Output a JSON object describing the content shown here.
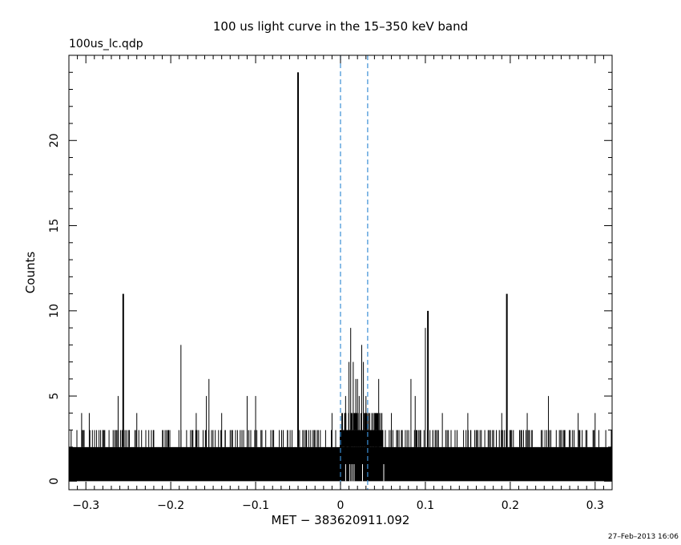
{
  "chart_data": {
    "type": "bar",
    "title": "100 us light curve in the 15–350 keV band",
    "subtitle": "100us_lc.qdp",
    "xlabel": "MET − 383620911.092",
    "ylabel": "Counts",
    "footer": "27–Feb–2013 16:06",
    "xlim": [
      -0.32,
      0.32
    ],
    "ylim": [
      -0.5,
      25
    ],
    "x_ticks": [
      -0.3,
      -0.2,
      -0.1,
      0,
      0.1,
      0.2,
      0.3
    ],
    "x_tick_labels": [
      "−0.3",
      "−0.2",
      "−0.1",
      "0",
      "0.1",
      "0.2",
      "0.3"
    ],
    "y_ticks": [
      0,
      5,
      10,
      15,
      20
    ],
    "y_tick_labels": [
      "0",
      "5",
      "10",
      "15",
      "20"
    ],
    "bin_width": 0.0001,
    "baseline_counts_band": [
      0,
      2
    ],
    "spikes": [
      {
        "x": -0.305,
        "y": 4
      },
      {
        "x": -0.296,
        "y": 4
      },
      {
        "x": -0.28,
        "y": 3
      },
      {
        "x": -0.262,
        "y": 5
      },
      {
        "x": -0.256,
        "y": 11
      },
      {
        "x": -0.24,
        "y": 4
      },
      {
        "x": -0.22,
        "y": 3
      },
      {
        "x": -0.188,
        "y": 8
      },
      {
        "x": -0.17,
        "y": 4
      },
      {
        "x": -0.158,
        "y": 5
      },
      {
        "x": -0.155,
        "y": 6
      },
      {
        "x": -0.14,
        "y": 4
      },
      {
        "x": -0.11,
        "y": 5
      },
      {
        "x": -0.1,
        "y": 5
      },
      {
        "x": -0.08,
        "y": 3
      },
      {
        "x": -0.05,
        "y": 24
      },
      {
        "x": -0.03,
        "y": 3
      },
      {
        "x": -0.01,
        "y": 4
      },
      {
        "x": 0.006,
        "y": 5
      },
      {
        "x": 0.01,
        "y": 7
      },
      {
        "x": 0.012,
        "y": 9
      },
      {
        "x": 0.015,
        "y": 7
      },
      {
        "x": 0.018,
        "y": 6
      },
      {
        "x": 0.02,
        "y": 6
      },
      {
        "x": 0.022,
        "y": 5
      },
      {
        "x": 0.025,
        "y": 8
      },
      {
        "x": 0.027,
        "y": 7
      },
      {
        "x": 0.03,
        "y": 5
      },
      {
        "x": 0.033,
        "y": 4
      },
      {
        "x": 0.04,
        "y": 4
      },
      {
        "x": 0.045,
        "y": 6
      },
      {
        "x": 0.06,
        "y": 4
      },
      {
        "x": 0.083,
        "y": 6
      },
      {
        "x": 0.088,
        "y": 5
      },
      {
        "x": 0.1,
        "y": 9
      },
      {
        "x": 0.103,
        "y": 10
      },
      {
        "x": 0.12,
        "y": 4
      },
      {
        "x": 0.15,
        "y": 4
      },
      {
        "x": 0.17,
        "y": 3
      },
      {
        "x": 0.19,
        "y": 4
      },
      {
        "x": 0.196,
        "y": 11
      },
      {
        "x": 0.22,
        "y": 4
      },
      {
        "x": 0.245,
        "y": 5
      },
      {
        "x": 0.26,
        "y": 3
      },
      {
        "x": 0.28,
        "y": 4
      },
      {
        "x": 0.3,
        "y": 4
      }
    ],
    "burst_region": {
      "x_range": [
        0,
        0.05
      ],
      "typical_max": 4
    },
    "markers": [
      {
        "x": 0.0,
        "style": "dashed",
        "color": "#3b8fd6"
      },
      {
        "x": 0.032,
        "style": "dashed",
        "color": "#3b8fd6"
      }
    ],
    "grid": false,
    "bar_color": "#000000"
  }
}
